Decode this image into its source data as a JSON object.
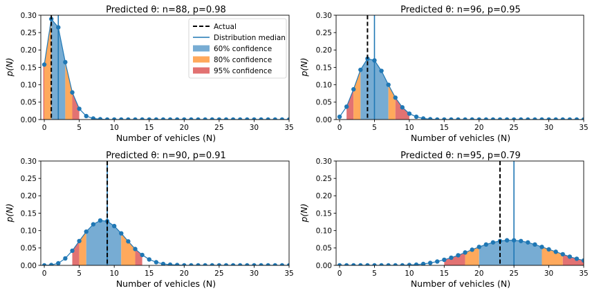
{
  "chart_data": [
    {
      "type": "line",
      "title": "Predicted θ: n=88, p=0.98",
      "xlabel": "Number of vehicles (N)",
      "ylabel": "p(N)",
      "xlim": [
        -0.5,
        35
      ],
      "ylim": [
        0,
        0.3
      ],
      "xticks": [
        0,
        5,
        10,
        15,
        20,
        25,
        30,
        35
      ],
      "yticks": [
        0.0,
        0.05,
        0.1,
        0.15,
        0.2,
        0.25,
        0.3
      ],
      "x": [
        0,
        1,
        2,
        3,
        4,
        5,
        6,
        7,
        8,
        9,
        10,
        11,
        12,
        13,
        14,
        15,
        16,
        17,
        18,
        19,
        20,
        21,
        22,
        23,
        24,
        25,
        26,
        27,
        28,
        29,
        30,
        31,
        32,
        33,
        34,
        35
      ],
      "series": [
        {
          "values": [
            0.158,
            0.289,
            0.265,
            0.165,
            0.078,
            0.031,
            0.01,
            0.003,
            0.001,
            0,
            0,
            0,
            0,
            0,
            0,
            0,
            0,
            0,
            0,
            0,
            0,
            0,
            0,
            0,
            0,
            0,
            0,
            0,
            0,
            0,
            0,
            0,
            0,
            0,
            0,
            0
          ]
        }
      ],
      "actual": 1,
      "median": 2,
      "bands": [
        {
          "level": "95",
          "from": 0,
          "to": 0
        },
        {
          "level": "80",
          "from": 0,
          "to": 1
        },
        {
          "level": "60",
          "from": 1,
          "to": 3
        },
        {
          "level": "80",
          "from": 3,
          "to": 4
        },
        {
          "level": "95",
          "from": 4,
          "to": 5
        }
      ],
      "legend": {
        "position": "top-right",
        "items": [
          {
            "label": "Actual",
            "kind": "dashed-line"
          },
          {
            "label": "Distribution median",
            "kind": "line"
          },
          {
            "label": "60% confidence",
            "kind": "patch",
            "level": "60"
          },
          {
            "label": "80% confidence",
            "kind": "patch",
            "level": "80"
          },
          {
            "label": "95% confidence",
            "kind": "patch",
            "level": "95"
          }
        ]
      }
    },
    {
      "type": "line",
      "title": "Predicted θ: n=96, p=0.95",
      "xlabel": "Number of vehicles (N)",
      "ylabel": "p(N)",
      "xlim": [
        -0.5,
        35
      ],
      "ylim": [
        0,
        0.3
      ],
      "xticks": [
        0,
        5,
        10,
        15,
        20,
        25,
        30,
        35
      ],
      "yticks": [
        0.0,
        0.05,
        0.1,
        0.15,
        0.2,
        0.25,
        0.3
      ],
      "x": [
        0,
        1,
        2,
        3,
        4,
        5,
        6,
        7,
        8,
        9,
        10,
        11,
        12,
        13,
        14,
        15,
        16,
        17,
        18,
        19,
        20,
        21,
        22,
        23,
        24,
        25,
        26,
        27,
        28,
        29,
        30,
        31,
        32,
        33,
        34,
        35
      ],
      "series": [
        {
          "values": [
            0.008,
            0.037,
            0.087,
            0.143,
            0.175,
            0.17,
            0.14,
            0.1,
            0.063,
            0.035,
            0.017,
            0.008,
            0.003,
            0.001,
            0,
            0,
            0,
            0,
            0,
            0,
            0,
            0,
            0,
            0,
            0,
            0,
            0,
            0,
            0,
            0,
            0,
            0,
            0,
            0,
            0,
            0
          ]
        }
      ],
      "actual": 4,
      "median": 5,
      "bands": [
        {
          "level": "95",
          "from": 1,
          "to": 2
        },
        {
          "level": "80",
          "from": 2,
          "to": 3
        },
        {
          "level": "60",
          "from": 3,
          "to": 7
        },
        {
          "level": "80",
          "from": 7,
          "to": 8
        },
        {
          "level": "95",
          "from": 8,
          "to": 10
        }
      ]
    },
    {
      "type": "line",
      "title": "Predicted θ: n=90, p=0.91",
      "xlabel": "Number of vehicles (N)",
      "ylabel": "p(N)",
      "xlim": [
        -0.5,
        35
      ],
      "ylim": [
        0,
        0.3
      ],
      "xticks": [
        0,
        5,
        10,
        15,
        20,
        25,
        30,
        35
      ],
      "yticks": [
        0.0,
        0.05,
        0.1,
        0.15,
        0.2,
        0.25,
        0.3
      ],
      "x": [
        0,
        1,
        2,
        3,
        4,
        5,
        6,
        7,
        8,
        9,
        10,
        11,
        12,
        13,
        14,
        15,
        16,
        17,
        18,
        19,
        20,
        21,
        22,
        23,
        24,
        25,
        26,
        27,
        28,
        29,
        30,
        31,
        32,
        33,
        34,
        35
      ],
      "series": [
        {
          "values": [
            0,
            0.001,
            0.006,
            0.02,
            0.042,
            0.07,
            0.097,
            0.118,
            0.129,
            0.127,
            0.113,
            0.092,
            0.069,
            0.047,
            0.03,
            0.017,
            0.009,
            0.004,
            0.002,
            0.001,
            0,
            0,
            0,
            0,
            0,
            0,
            0,
            0,
            0,
            0,
            0,
            0,
            0,
            0,
            0,
            0
          ]
        }
      ],
      "actual": 9,
      "median": 9,
      "bands": [
        {
          "level": "95",
          "from": 4,
          "to": 5
        },
        {
          "level": "80",
          "from": 5,
          "to": 6
        },
        {
          "level": "60",
          "from": 6,
          "to": 11
        },
        {
          "level": "80",
          "from": 11,
          "to": 13
        },
        {
          "level": "95",
          "from": 13,
          "to": 14
        }
      ]
    },
    {
      "type": "line",
      "title": "Predicted θ: n=95, p=0.79",
      "xlabel": "Number of vehicles (N)",
      "ylabel": "p(N)",
      "xlim": [
        -0.5,
        35
      ],
      "ylim": [
        0,
        0.3
      ],
      "xticks": [
        0,
        5,
        10,
        15,
        20,
        25,
        30,
        35
      ],
      "yticks": [
        0.0,
        0.05,
        0.1,
        0.15,
        0.2,
        0.25,
        0.3
      ],
      "x": [
        0,
        1,
        2,
        3,
        4,
        5,
        6,
        7,
        8,
        9,
        10,
        11,
        12,
        13,
        14,
        15,
        16,
        17,
        18,
        19,
        20,
        21,
        22,
        23,
        24,
        25,
        26,
        27,
        28,
        29,
        30,
        31,
        32,
        33,
        34,
        35
      ],
      "series": [
        {
          "values": [
            0,
            0,
            0,
            0,
            0,
            0,
            0,
            0,
            0,
            0,
            0.001,
            0.002,
            0.004,
            0.007,
            0.011,
            0.016,
            0.022,
            0.029,
            0.037,
            0.045,
            0.053,
            0.06,
            0.066,
            0.07,
            0.072,
            0.072,
            0.07,
            0.066,
            0.06,
            0.053,
            0.046,
            0.039,
            0.032,
            0.025,
            0.019,
            0.014
          ]
        }
      ],
      "actual": 23,
      "median": 25,
      "bands": [
        {
          "level": "95",
          "from": 15,
          "to": 18
        },
        {
          "level": "80",
          "from": 18,
          "to": 20
        },
        {
          "level": "60",
          "from": 20,
          "to": 29
        },
        {
          "level": "80",
          "from": 29,
          "to": 32
        },
        {
          "level": "95",
          "from": 32,
          "to": 35
        }
      ]
    }
  ],
  "colors": {
    "line": "#1f77b4",
    "actual": "#000000",
    "band_60": "#77acd3",
    "band_80": "#ffa95c",
    "band_95": "#e27272",
    "axis": "#000000"
  }
}
